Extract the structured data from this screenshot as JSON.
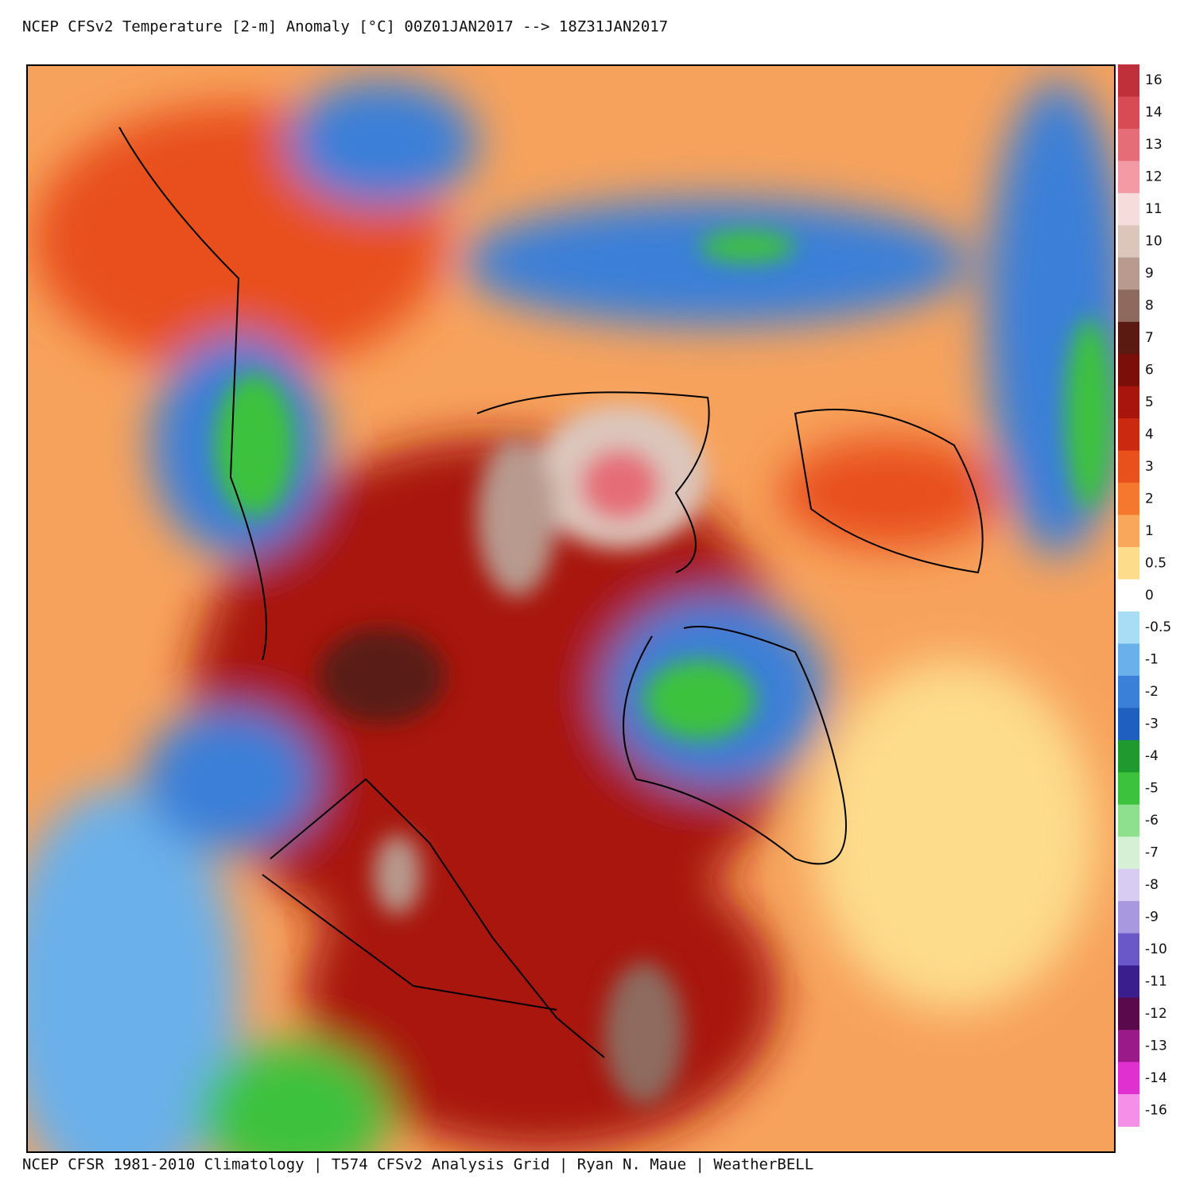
{
  "header": {
    "title": "NCEP CFSv2 Temperature [2-m] Anomaly  [°C] 00Z01JAN2017 --> 18Z31JAN2017"
  },
  "footer": {
    "text": "NCEP CFSR 1981-2010 Climatology | T574 CFSv2 Analysis Grid | Ryan N. Maue | WeatherBELL"
  },
  "colorbar": {
    "labels": [
      16,
      14,
      13,
      12,
      11,
      10,
      9,
      8,
      7,
      6,
      5,
      4,
      3,
      2,
      1,
      0.5,
      0,
      -0.5,
      -1,
      -2,
      -3,
      -4,
      -5,
      -6,
      -7,
      -8,
      -9,
      -10,
      -11,
      -12,
      -13,
      -14,
      -16
    ],
    "colors": [
      "#c0303a",
      "#d84a55",
      "#e56d78",
      "#f29aa5",
      "#f7dcdc",
      "#dcc6bc",
      "#b89a8e",
      "#8e6a5e",
      "#5a1a12",
      "#7a0f0a",
      "#a8150c",
      "#cc2a10",
      "#e8501c",
      "#f5782e",
      "#f9a75a",
      "#fddc8c",
      "#ffffff",
      "#a9dcf5",
      "#6ab0ea",
      "#3a7fd8",
      "#1e5fc0",
      "#1e9a2e",
      "#3cc23c",
      "#8ee08e",
      "#d6f0d6",
      "#d8ccf2",
      "#a898e0",
      "#6a58c8",
      "#3a1e8e",
      "#5a0a4a",
      "#9a1a8a",
      "#e030d0",
      "#f590e8"
    ]
  }
}
